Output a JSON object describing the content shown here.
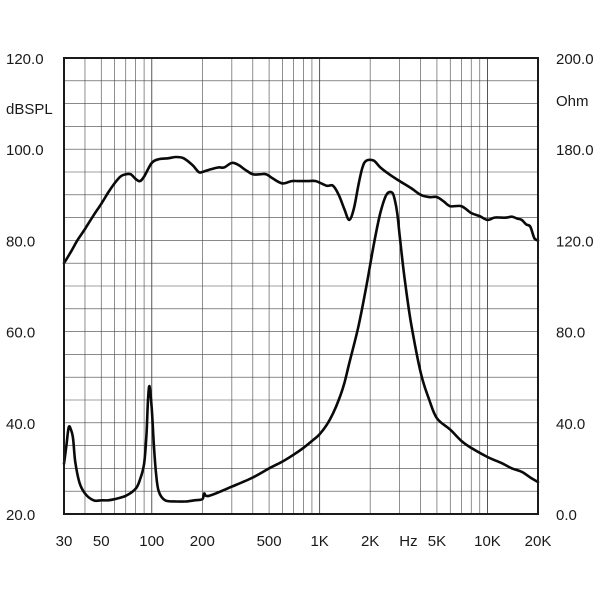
{
  "chart_data": {
    "type": "line",
    "title": "",
    "xlabel": "Hz",
    "x_scale": "log",
    "xlim": [
      30,
      20000
    ],
    "x_ticks": [
      {
        "value": 30,
        "label": "30"
      },
      {
        "value": 50,
        "label": "50"
      },
      {
        "value": 100,
        "label": "100"
      },
      {
        "value": 200,
        "label": "200"
      },
      {
        "value": 500,
        "label": "500"
      },
      {
        "value": 1000,
        "label": "1K"
      },
      {
        "value": 2000,
        "label": "2K"
      },
      {
        "value": 5000,
        "label": "5K"
      },
      {
        "value": 10000,
        "label": "10K"
      },
      {
        "value": 20000,
        "label": "20K"
      }
    ],
    "x_axis_unit": "Hz",
    "y_left": {
      "unit": "dBSPL",
      "range": [
        20,
        120
      ],
      "ticks": [
        "20.0",
        "40.0",
        "60.0",
        "80.0",
        "100.0",
        "120.0"
      ]
    },
    "y_right": {
      "unit": "Ohm",
      "range": [
        0,
        200
      ],
      "ticks": [
        "0.0",
        "40.0",
        "80.0",
        "120.0",
        "180.0",
        "200.0"
      ]
    },
    "grid": true,
    "series": [
      {
        "axis": "left",
        "x": [
          30,
          33,
          36,
          40,
          45,
          50,
          55,
          60,
          65,
          70,
          75,
          80,
          85,
          90,
          100,
          110,
          125,
          140,
          155,
          175,
          190,
          200,
          220,
          250,
          270,
          300,
          330,
          360,
          400,
          440,
          480,
          530,
          600,
          680,
          750,
          850,
          950,
          1100,
          1200,
          1300,
          1400,
          1500,
          1600,
          1700,
          1800,
          1900,
          2100,
          2300,
          2600,
          3000,
          3500,
          4000,
          4500,
          5000,
          5500,
          6000,
          7000,
          8000,
          9000,
          10000,
          11000,
          12000,
          13000,
          14000,
          15000,
          16000,
          17000,
          18000,
          19000,
          20000
        ],
        "y": [
          75,
          77.5,
          80,
          82.5,
          85.5,
          88,
          90.5,
          92.5,
          94,
          94.5,
          94.5,
          93.5,
          93,
          94,
          97,
          97.8,
          98,
          98.3,
          98,
          96.5,
          95,
          95,
          95.5,
          96,
          96,
          97,
          96.5,
          95.5,
          94.5,
          94.5,
          94.5,
          93.5,
          92.5,
          93,
          93,
          93,
          93,
          92,
          92,
          90,
          87,
          84.5,
          87,
          92,
          96,
          97.5,
          97.5,
          96,
          94.5,
          93,
          91.5,
          90,
          89.5,
          89.5,
          88.5,
          87.5,
          87.5,
          86,
          85.3,
          84.5,
          85,
          85,
          85,
          85.2,
          84.8,
          84.5,
          83.5,
          83,
          80.5,
          80
        ]
      },
      {
        "axis": "right",
        "x": [
          30,
          31,
          32,
          33,
          34,
          35,
          37,
          40,
          45,
          50,
          55,
          60,
          70,
          80,
          85,
          90,
          93,
          95,
          97,
          100,
          103,
          106,
          110,
          120,
          140,
          160,
          180,
          200,
          205,
          210,
          220,
          250,
          300,
          400,
          500,
          600,
          700,
          800,
          900,
          1000,
          1100,
          1200,
          1300,
          1400,
          1500,
          1700,
          1900,
          2100,
          2300,
          2500,
          2700,
          2800,
          2900,
          3000,
          3200,
          3500,
          4000,
          4500,
          5000,
          6000,
          7000,
          8000,
          10000,
          12000,
          14000,
          16000,
          18000,
          20000
        ],
        "y": [
          22,
          30,
          38,
          37,
          33,
          23,
          14,
          9,
          6,
          6,
          6,
          6.5,
          8,
          11,
          15,
          22,
          35,
          50,
          56,
          46,
          30,
          18,
          10,
          6,
          5.5,
          5.5,
          6,
          6.5,
          9,
          8,
          8,
          9.5,
          12,
          16,
          20,
          23,
          26,
          29,
          32,
          35,
          39,
          44,
          50,
          57,
          66,
          82,
          100,
          118,
          132,
          140,
          141,
          138,
          132,
          122,
          104,
          84,
          62,
          50,
          42,
          37,
          32,
          29,
          25,
          22.5,
          20,
          18.5,
          16,
          14
        ]
      }
    ]
  }
}
